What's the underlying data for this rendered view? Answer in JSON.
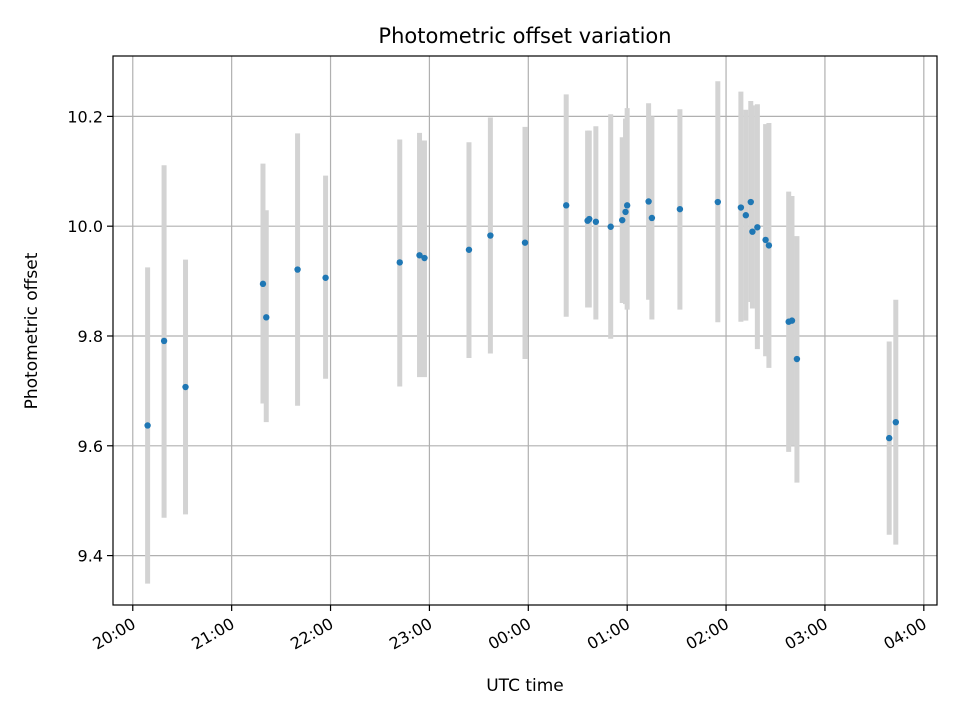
{
  "chart_data": {
    "type": "scatter",
    "title": "Photometric offset variation",
    "xlabel": "UTC time",
    "ylabel": "Photometric offset",
    "grid": true,
    "colors": {
      "points": "#1f77b4",
      "errorbars": "#d3d3d3",
      "grid": "#b0b0b0"
    },
    "x_unit": "minutes_since_20:00",
    "xlim": [
      -12,
      488
    ],
    "ylim": [
      9.31,
      10.31
    ],
    "xticks": [
      {
        "value": 0,
        "label": "20:00"
      },
      {
        "value": 60,
        "label": "21:00"
      },
      {
        "value": 120,
        "label": "22:00"
      },
      {
        "value": 180,
        "label": "23:00"
      },
      {
        "value": 240,
        "label": "00:00"
      },
      {
        "value": 300,
        "label": "01:00"
      },
      {
        "value": 360,
        "label": "02:00"
      },
      {
        "value": 420,
        "label": "03:00"
      },
      {
        "value": 480,
        "label": "04:00"
      }
    ],
    "yticks": [
      {
        "value": 9.4,
        "label": "9.4"
      },
      {
        "value": 9.6,
        "label": "9.6"
      },
      {
        "value": 9.8,
        "label": "9.8"
      },
      {
        "value": 10.0,
        "label": "10.0"
      },
      {
        "value": 10.2,
        "label": "10.2"
      }
    ],
    "points": [
      {
        "x": 9,
        "y": 9.637,
        "lo": 9.349,
        "hi": 9.925
      },
      {
        "x": 19,
        "y": 9.791,
        "lo": 9.469,
        "hi": 10.111
      },
      {
        "x": 32,
        "y": 9.707,
        "lo": 9.475,
        "hi": 9.939
      },
      {
        "x": 79,
        "y": 9.895,
        "lo": 9.677,
        "hi": 10.114
      },
      {
        "x": 81,
        "y": 9.834,
        "lo": 9.643,
        "hi": 10.029
      },
      {
        "x": 100,
        "y": 9.921,
        "lo": 9.673,
        "hi": 10.169
      },
      {
        "x": 117,
        "y": 9.906,
        "lo": 9.722,
        "hi": 10.092
      },
      {
        "x": 162,
        "y": 9.934,
        "lo": 9.708,
        "hi": 10.158
      },
      {
        "x": 174,
        "y": 9.947,
        "lo": 9.725,
        "hi": 10.17
      },
      {
        "x": 177,
        "y": 9.942,
        "lo": 9.725,
        "hi": 10.156
      },
      {
        "x": 204,
        "y": 9.957,
        "lo": 9.76,
        "hi": 10.153
      },
      {
        "x": 217,
        "y": 9.983,
        "lo": 9.768,
        "hi": 10.198
      },
      {
        "x": 238,
        "y": 9.97,
        "lo": 9.758,
        "hi": 10.181
      },
      {
        "x": 263,
        "y": 10.038,
        "lo": 9.835,
        "hi": 10.24
      },
      {
        "x": 276,
        "y": 10.01,
        "lo": 9.852,
        "hi": 10.174
      },
      {
        "x": 277,
        "y": 10.013,
        "lo": 9.852,
        "hi": 10.174
      },
      {
        "x": 281,
        "y": 10.008,
        "lo": 9.83,
        "hi": 10.182
      },
      {
        "x": 290,
        "y": 9.999,
        "lo": 9.795,
        "hi": 10.204
      },
      {
        "x": 297,
        "y": 10.011,
        "lo": 9.86,
        "hi": 10.162
      },
      {
        "x": 299,
        "y": 10.026,
        "lo": 9.858,
        "hi": 10.196
      },
      {
        "x": 300,
        "y": 10.038,
        "lo": 9.848,
        "hi": 10.215
      },
      {
        "x": 313,
        "y": 10.045,
        "lo": 9.866,
        "hi": 10.224
      },
      {
        "x": 315,
        "y": 10.015,
        "lo": 9.83,
        "hi": 10.2
      },
      {
        "x": 332,
        "y": 10.031,
        "lo": 9.848,
        "hi": 10.213
      },
      {
        "x": 355,
        "y": 10.044,
        "lo": 9.825,
        "hi": 10.264
      },
      {
        "x": 369,
        "y": 10.034,
        "lo": 9.826,
        "hi": 10.245
      },
      {
        "x": 372,
        "y": 10.02,
        "lo": 9.828,
        "hi": 10.212
      },
      {
        "x": 375,
        "y": 10.044,
        "lo": 9.862,
        "hi": 10.228
      },
      {
        "x": 376,
        "y": 9.99,
        "lo": 9.85,
        "hi": 10.22
      },
      {
        "x": 379,
        "y": 9.998,
        "lo": 9.776,
        "hi": 10.222
      },
      {
        "x": 384,
        "y": 9.975,
        "lo": 9.763,
        "hi": 10.186
      },
      {
        "x": 386,
        "y": 9.965,
        "lo": 9.742,
        "hi": 10.188
      },
      {
        "x": 398,
        "y": 9.826,
        "lo": 9.589,
        "hi": 10.063
      },
      {
        "x": 400,
        "y": 9.828,
        "lo": 9.6,
        "hi": 10.055
      },
      {
        "x": 403,
        "y": 9.758,
        "lo": 9.533,
        "hi": 9.982
      },
      {
        "x": 459,
        "y": 9.614,
        "lo": 9.438,
        "hi": 9.79
      },
      {
        "x": 463,
        "y": 9.643,
        "lo": 9.42,
        "hi": 9.866
      }
    ]
  }
}
